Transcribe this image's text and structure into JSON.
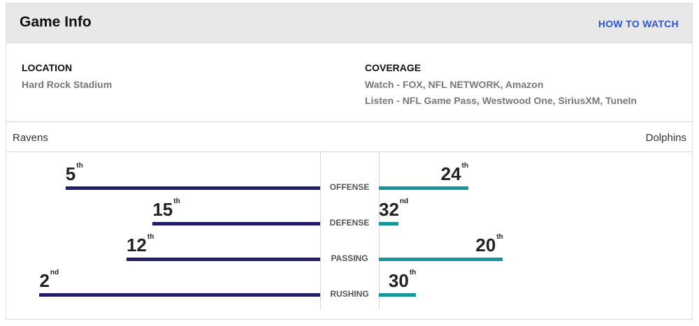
{
  "header": {
    "title": "Game Info",
    "how_to_watch": "HOW TO WATCH"
  },
  "info": {
    "location_label": "LOCATION",
    "location_value": "Hard Rock Stadium",
    "coverage_label": "COVERAGE",
    "watch_label": "Watch",
    "watch_value": "FOX, NFL NETWORK, Amazon",
    "listen_label": "Listen",
    "listen_value": "NFL Game Pass, Westwood One, SiriusXM, TuneIn"
  },
  "teams": {
    "away": "Ravens",
    "home": "Dolphins"
  },
  "colors": {
    "away_bar": "#221d6b",
    "home_bar": "#14979b",
    "link": "#2a55d6"
  },
  "comparison": [
    {
      "category": "OFFENSE",
      "away_rank": "5",
      "away_suffix": "th",
      "home_rank": "24",
      "home_suffix": "th"
    },
    {
      "category": "DEFENSE",
      "away_rank": "15",
      "away_suffix": "th",
      "home_rank": "32",
      "home_suffix": "nd"
    },
    {
      "category": "PASSING",
      "away_rank": "12",
      "away_suffix": "th",
      "home_rank": "20",
      "home_suffix": "th"
    },
    {
      "category": "RUSHING",
      "away_rank": "2",
      "away_suffix": "nd",
      "home_rank": "30",
      "home_suffix": "th"
    }
  ]
}
